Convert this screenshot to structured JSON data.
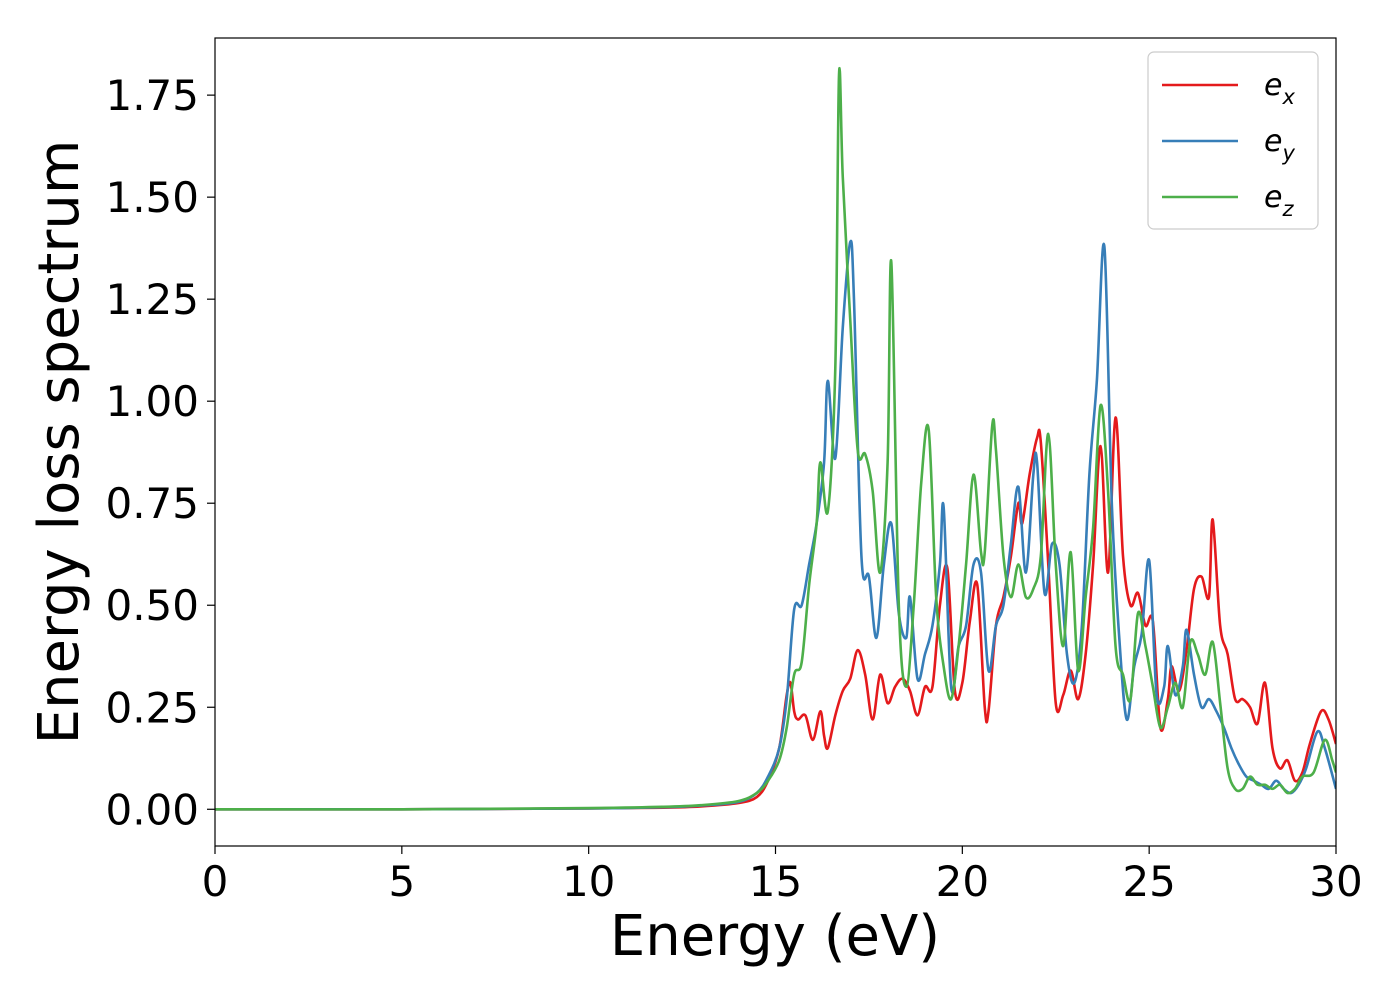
{
  "chart_data": {
    "type": "line",
    "title": "",
    "xlabel": "Energy (eV)",
    "ylabel": "Energy loss spectrum",
    "xlim": [
      0,
      30
    ],
    "ylim": [
      -0.09,
      1.89
    ],
    "xticks": [
      0,
      5,
      10,
      15,
      20,
      25,
      30
    ],
    "xtick_labels": [
      "0",
      "5",
      "10",
      "15",
      "20",
      "25",
      "30"
    ],
    "yticks": [
      0.0,
      0.25,
      0.5,
      0.75,
      1.0,
      1.25,
      1.5,
      1.75
    ],
    "ytick_labels": [
      "0.00",
      "0.25",
      "0.50",
      "0.75",
      "1.00",
      "1.25",
      "1.50",
      "1.75"
    ],
    "grid": false,
    "legend_position": "top-right",
    "series": [
      {
        "name": "e_x",
        "label_base": "e",
        "label_sub": "x",
        "color": "#e41a1c",
        "points": [
          [
            0,
            0.0
          ],
          [
            5,
            0.0
          ],
          [
            10,
            0.002
          ],
          [
            12,
            0.004
          ],
          [
            13,
            0.007
          ],
          [
            14,
            0.015
          ],
          [
            14.5,
            0.03
          ],
          [
            14.8,
            0.07
          ],
          [
            15.1,
            0.15
          ],
          [
            15.3,
            0.28
          ],
          [
            15.4,
            0.31
          ],
          [
            15.5,
            0.24
          ],
          [
            15.6,
            0.22
          ],
          [
            15.8,
            0.23
          ],
          [
            16,
            0.17
          ],
          [
            16.2,
            0.24
          ],
          [
            16.3,
            0.18
          ],
          [
            16.4,
            0.15
          ],
          [
            16.6,
            0.23
          ],
          [
            16.8,
            0.29
          ],
          [
            17,
            0.32
          ],
          [
            17.2,
            0.39
          ],
          [
            17.4,
            0.33
          ],
          [
            17.6,
            0.22
          ],
          [
            17.8,
            0.33
          ],
          [
            18,
            0.26
          ],
          [
            18.2,
            0.3
          ],
          [
            18.4,
            0.32
          ],
          [
            18.6,
            0.29
          ],
          [
            18.8,
            0.23
          ],
          [
            19,
            0.3
          ],
          [
            19.2,
            0.3
          ],
          [
            19.4,
            0.5
          ],
          [
            19.6,
            0.59
          ],
          [
            19.8,
            0.29
          ],
          [
            20,
            0.31
          ],
          [
            20.2,
            0.46
          ],
          [
            20.4,
            0.55
          ],
          [
            20.6,
            0.25
          ],
          [
            20.7,
            0.24
          ],
          [
            20.9,
            0.45
          ],
          [
            21.1,
            0.52
          ],
          [
            21.3,
            0.62
          ],
          [
            21.5,
            0.75
          ],
          [
            21.6,
            0.7
          ],
          [
            21.8,
            0.82
          ],
          [
            22,
            0.91
          ],
          [
            22.1,
            0.9
          ],
          [
            22.3,
            0.6
          ],
          [
            22.5,
            0.26
          ],
          [
            22.7,
            0.28
          ],
          [
            22.9,
            0.34
          ],
          [
            23.1,
            0.27
          ],
          [
            23.3,
            0.38
          ],
          [
            23.5,
            0.6
          ],
          [
            23.7,
            0.89
          ],
          [
            23.9,
            0.58
          ],
          [
            24.1,
            0.96
          ],
          [
            24.3,
            0.62
          ],
          [
            24.5,
            0.5
          ],
          [
            24.7,
            0.53
          ],
          [
            24.9,
            0.45
          ],
          [
            25.1,
            0.46
          ],
          [
            25.3,
            0.2
          ],
          [
            25.5,
            0.27
          ],
          [
            25.6,
            0.35
          ],
          [
            25.8,
            0.29
          ],
          [
            26,
            0.39
          ],
          [
            26.2,
            0.54
          ],
          [
            26.4,
            0.57
          ],
          [
            26.6,
            0.52
          ],
          [
            26.7,
            0.71
          ],
          [
            26.9,
            0.45
          ],
          [
            27.1,
            0.38
          ],
          [
            27.3,
            0.27
          ],
          [
            27.5,
            0.27
          ],
          [
            27.7,
            0.25
          ],
          [
            27.9,
            0.21
          ],
          [
            28.1,
            0.31
          ],
          [
            28.3,
            0.15
          ],
          [
            28.5,
            0.1
          ],
          [
            28.7,
            0.12
          ],
          [
            28.9,
            0.07
          ],
          [
            29.1,
            0.09
          ],
          [
            29.3,
            0.16
          ],
          [
            29.6,
            0.24
          ],
          [
            29.8,
            0.22
          ],
          [
            30,
            0.16
          ]
        ]
      },
      {
        "name": "e_y",
        "label_base": "e",
        "label_sub": "y",
        "color": "#377eb8",
        "points": [
          [
            0,
            0.0
          ],
          [
            5,
            0.0
          ],
          [
            10,
            0.002
          ],
          [
            12,
            0.005
          ],
          [
            13,
            0.009
          ],
          [
            14,
            0.018
          ],
          [
            14.5,
            0.04
          ],
          [
            14.8,
            0.08
          ],
          [
            15.1,
            0.15
          ],
          [
            15.3,
            0.27
          ],
          [
            15.5,
            0.49
          ],
          [
            15.7,
            0.5
          ],
          [
            15.9,
            0.6
          ],
          [
            16.1,
            0.7
          ],
          [
            16.3,
            0.85
          ],
          [
            16.4,
            1.05
          ],
          [
            16.6,
            0.86
          ],
          [
            16.8,
            1.18
          ],
          [
            17,
            1.39
          ],
          [
            17.1,
            1.25
          ],
          [
            17.3,
            0.62
          ],
          [
            17.5,
            0.57
          ],
          [
            17.7,
            0.42
          ],
          [
            17.9,
            0.6
          ],
          [
            18.1,
            0.7
          ],
          [
            18.3,
            0.48
          ],
          [
            18.5,
            0.42
          ],
          [
            18.6,
            0.52
          ],
          [
            18.8,
            0.32
          ],
          [
            19,
            0.38
          ],
          [
            19.2,
            0.45
          ],
          [
            19.4,
            0.6
          ],
          [
            19.5,
            0.74
          ],
          [
            19.7,
            0.3
          ],
          [
            19.9,
            0.4
          ],
          [
            20.1,
            0.45
          ],
          [
            20.3,
            0.6
          ],
          [
            20.5,
            0.58
          ],
          [
            20.7,
            0.34
          ],
          [
            20.9,
            0.45
          ],
          [
            21.1,
            0.5
          ],
          [
            21.3,
            0.65
          ],
          [
            21.5,
            0.79
          ],
          [
            21.7,
            0.58
          ],
          [
            21.9,
            0.82
          ],
          [
            22,
            0.85
          ],
          [
            22.2,
            0.53
          ],
          [
            22.4,
            0.65
          ],
          [
            22.6,
            0.6
          ],
          [
            22.8,
            0.38
          ],
          [
            23,
            0.31
          ],
          [
            23.2,
            0.45
          ],
          [
            23.4,
            0.82
          ],
          [
            23.6,
            1.05
          ],
          [
            23.8,
            1.38
          ],
          [
            24,
            0.75
          ],
          [
            24.2,
            0.42
          ],
          [
            24.4,
            0.22
          ],
          [
            24.6,
            0.35
          ],
          [
            24.8,
            0.43
          ],
          [
            25,
            0.61
          ],
          [
            25.2,
            0.28
          ],
          [
            25.4,
            0.3
          ],
          [
            25.5,
            0.4
          ],
          [
            25.7,
            0.28
          ],
          [
            25.9,
            0.35
          ],
          [
            26,
            0.44
          ],
          [
            26.2,
            0.33
          ],
          [
            26.4,
            0.25
          ],
          [
            26.6,
            0.27
          ],
          [
            26.8,
            0.24
          ],
          [
            27,
            0.2
          ],
          [
            27.2,
            0.15
          ],
          [
            27.4,
            0.11
          ],
          [
            27.6,
            0.08
          ],
          [
            27.8,
            0.07
          ],
          [
            28,
            0.06
          ],
          [
            28.2,
            0.05
          ],
          [
            28.4,
            0.07
          ],
          [
            28.6,
            0.05
          ],
          [
            28.8,
            0.04
          ],
          [
            29,
            0.06
          ],
          [
            29.2,
            0.1
          ],
          [
            29.5,
            0.19
          ],
          [
            29.7,
            0.15
          ],
          [
            30,
            0.05
          ]
        ]
      },
      {
        "name": "e_z",
        "label_base": "e",
        "label_sub": "z",
        "color": "#4daf4a",
        "points": [
          [
            0,
            0.0
          ],
          [
            5,
            0.0
          ],
          [
            10,
            0.003
          ],
          [
            12,
            0.006
          ],
          [
            13,
            0.01
          ],
          [
            14,
            0.02
          ],
          [
            14.5,
            0.04
          ],
          [
            14.8,
            0.07
          ],
          [
            15.1,
            0.12
          ],
          [
            15.3,
            0.2
          ],
          [
            15.5,
            0.33
          ],
          [
            15.7,
            0.36
          ],
          [
            15.9,
            0.55
          ],
          [
            16.1,
            0.7
          ],
          [
            16.2,
            0.85
          ],
          [
            16.4,
            0.73
          ],
          [
            16.6,
            1.08
          ],
          [
            16.7,
            1.8
          ],
          [
            16.8,
            1.55
          ],
          [
            17,
            1.2
          ],
          [
            17.2,
            0.88
          ],
          [
            17.4,
            0.87
          ],
          [
            17.6,
            0.78
          ],
          [
            17.8,
            0.58
          ],
          [
            18,
            0.85
          ],
          [
            18.1,
            1.34
          ],
          [
            18.3,
            0.5
          ],
          [
            18.5,
            0.3
          ],
          [
            18.7,
            0.5
          ],
          [
            18.9,
            0.8
          ],
          [
            19.1,
            0.93
          ],
          [
            19.3,
            0.52
          ],
          [
            19.5,
            0.35
          ],
          [
            19.7,
            0.27
          ],
          [
            19.9,
            0.4
          ],
          [
            20.1,
            0.6
          ],
          [
            20.3,
            0.82
          ],
          [
            20.5,
            0.63
          ],
          [
            20.6,
            0.63
          ],
          [
            20.8,
            0.94
          ],
          [
            20.9,
            0.88
          ],
          [
            21.1,
            0.62
          ],
          [
            21.3,
            0.52
          ],
          [
            21.5,
            0.6
          ],
          [
            21.7,
            0.52
          ],
          [
            21.9,
            0.54
          ],
          [
            22.1,
            0.62
          ],
          [
            22.3,
            0.92
          ],
          [
            22.5,
            0.6
          ],
          [
            22.7,
            0.4
          ],
          [
            22.9,
            0.63
          ],
          [
            23.1,
            0.34
          ],
          [
            23.3,
            0.52
          ],
          [
            23.5,
            0.69
          ],
          [
            23.7,
            0.99
          ],
          [
            23.9,
            0.78
          ],
          [
            24.1,
            0.4
          ],
          [
            24.3,
            0.33
          ],
          [
            24.5,
            0.27
          ],
          [
            24.7,
            0.48
          ],
          [
            24.9,
            0.4
          ],
          [
            25.1,
            0.3
          ],
          [
            25.3,
            0.2
          ],
          [
            25.5,
            0.25
          ],
          [
            25.7,
            0.31
          ],
          [
            25.9,
            0.25
          ],
          [
            26.1,
            0.41
          ],
          [
            26.3,
            0.38
          ],
          [
            26.5,
            0.33
          ],
          [
            26.7,
            0.41
          ],
          [
            26.9,
            0.26
          ],
          [
            27.1,
            0.1
          ],
          [
            27.3,
            0.05
          ],
          [
            27.5,
            0.05
          ],
          [
            27.7,
            0.08
          ],
          [
            27.9,
            0.06
          ],
          [
            28.1,
            0.06
          ],
          [
            28.3,
            0.05
          ],
          [
            28.5,
            0.06
          ],
          [
            28.7,
            0.04
          ],
          [
            28.9,
            0.05
          ],
          [
            29.1,
            0.08
          ],
          [
            29.4,
            0.09
          ],
          [
            29.7,
            0.17
          ],
          [
            29.9,
            0.12
          ],
          [
            30,
            0.09
          ]
        ]
      }
    ]
  }
}
